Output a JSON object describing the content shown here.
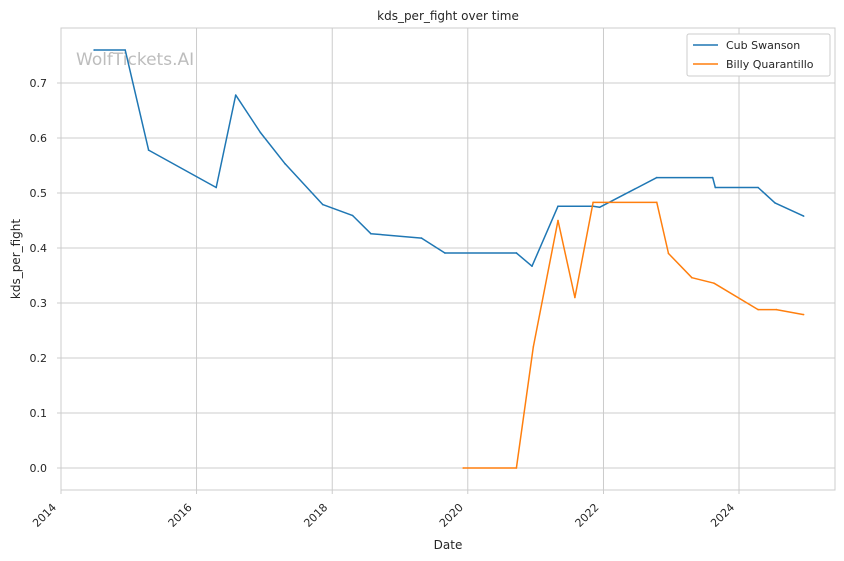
{
  "chart_data": {
    "type": "line",
    "title": "kds_per_fight over time",
    "xlabel": "Date",
    "ylabel": "kds_per_fight",
    "watermark": "WolfTickets.AI",
    "xlim": [
      "2014-01-01",
      "2025-06-01"
    ],
    "ylim": [
      -0.04,
      0.8
    ],
    "x_ticks": [
      "2014",
      "2016",
      "2018",
      "2020",
      "2022",
      "2024"
    ],
    "y_ticks": [
      "0.0",
      "0.1",
      "0.2",
      "0.3",
      "0.4",
      "0.5",
      "0.6",
      "0.7"
    ],
    "grid": true,
    "legend_position": "top-right",
    "series": [
      {
        "name": "Cub Swanson",
        "color": "#1f77b4",
        "points": [
          [
            "2014-06-28",
            0.76
          ],
          [
            "2014-12-13",
            0.76
          ],
          [
            "2015-04-18",
            0.578
          ],
          [
            "2016-04-16",
            0.51
          ],
          [
            "2016-07-30",
            0.678
          ],
          [
            "2016-12-10",
            0.61
          ],
          [
            "2017-04-22",
            0.553
          ],
          [
            "2017-11-11",
            0.479
          ],
          [
            "2018-04-21",
            0.459
          ],
          [
            "2018-07-28",
            0.426
          ],
          [
            "2019-04-27",
            0.418
          ],
          [
            "2019-08-31",
            0.391
          ],
          [
            "2020-09-19",
            0.391
          ],
          [
            "2020-12-12",
            0.367
          ],
          [
            "2021-05-01",
            0.476
          ],
          [
            "2021-11-06",
            0.476
          ],
          [
            "2021-12-11",
            0.474
          ],
          [
            "2022-10-15",
            0.528
          ],
          [
            "2023-08-12",
            0.528
          ],
          [
            "2023-08-26",
            0.51
          ],
          [
            "2024-04-13",
            0.51
          ],
          [
            "2024-07-13",
            0.482
          ],
          [
            "2024-12-14",
            0.458
          ]
        ]
      },
      {
        "name": "Billy Quarantillo",
        "color": "#ff7f0e",
        "points": [
          [
            "2019-12-07",
            0.0
          ],
          [
            "2020-09-19",
            0.0
          ],
          [
            "2020-12-19",
            0.22
          ],
          [
            "2021-05-01",
            0.45
          ],
          [
            "2021-07-31",
            0.31
          ],
          [
            "2021-11-06",
            0.483
          ],
          [
            "2022-10-15",
            0.483
          ],
          [
            "2022-12-17",
            0.39
          ],
          [
            "2023-04-22",
            0.346
          ],
          [
            "2023-08-19",
            0.336
          ],
          [
            "2024-04-13",
            0.288
          ],
          [
            "2024-07-20",
            0.288
          ],
          [
            "2024-12-14",
            0.279
          ]
        ]
      }
    ]
  }
}
